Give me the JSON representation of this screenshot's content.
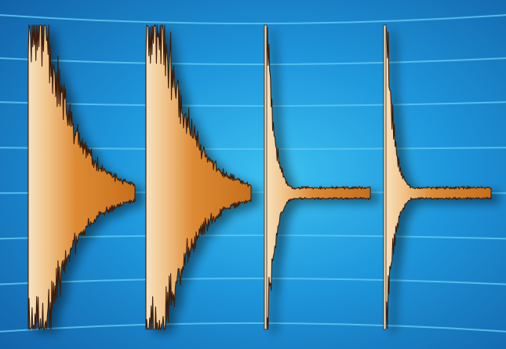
{
  "scene": {
    "kind": "illustration",
    "subject": "four-decaying-waveforms",
    "background_color": "#1a7fc8",
    "glow_color": "#38b6ec",
    "grid_line_color": "#5cc6f0",
    "waveform_colors": {
      "light": "#f6dcb4",
      "mid": "#e9a352",
      "dark": "#c9721f",
      "outline": "#3a1f0a"
    },
    "waveforms": [
      {
        "id": "waveform-1",
        "decay": "slow",
        "attack": "broad"
      },
      {
        "id": "waveform-2",
        "decay": "slow",
        "attack": "broad"
      },
      {
        "id": "waveform-3",
        "decay": "fast",
        "attack": "sharp"
      },
      {
        "id": "waveform-4",
        "decay": "fast",
        "attack": "sharp"
      }
    ]
  }
}
